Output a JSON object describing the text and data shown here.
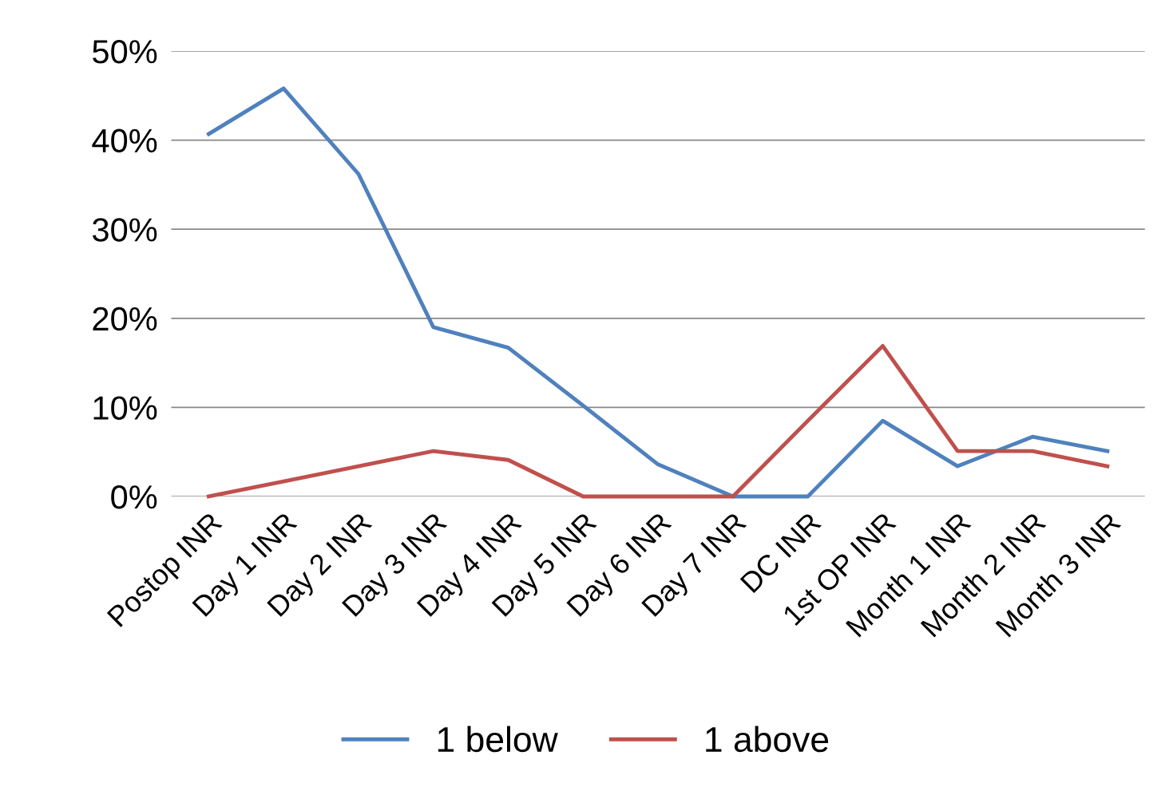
{
  "chart_data": {
    "type": "line",
    "categories": [
      "Postop INR",
      "Day 1 INR",
      "Day 2 INR",
      "Day 3 INR",
      "Day 4 INR",
      "Day 5 INR",
      "Day 6 INR",
      "Day 7 INR",
      "DC INR",
      "1st OP INR",
      "Month 1 INR",
      "Month 2 INR",
      "Month 3 INR"
    ],
    "series": [
      {
        "name": "1 below",
        "color": "#4f81bd",
        "values": [
          40.7,
          45.8,
          36.2,
          19.0,
          16.7,
          10.2,
          3.6,
          0,
          0,
          8.5,
          3.4,
          6.7,
          5.1
        ]
      },
      {
        "name": "1 above",
        "color": "#c0504d",
        "values": [
          0,
          1.7,
          3.4,
          5.1,
          4.1,
          0,
          0,
          0,
          8.5,
          16.9,
          5.1,
          5.1,
          3.4
        ]
      }
    ],
    "ylim": [
      0,
      50
    ],
    "yticks": [
      {
        "value": 0,
        "label": "0%"
      },
      {
        "value": 10,
        "label": "10%"
      },
      {
        "value": 20,
        "label": "20%"
      },
      {
        "value": 30,
        "label": "30%"
      },
      {
        "value": 40,
        "label": "40%"
      },
      {
        "value": 50,
        "label": "50%"
      }
    ],
    "grid": "y",
    "legend": "bottom",
    "marker": "none",
    "line_style": "solid"
  }
}
